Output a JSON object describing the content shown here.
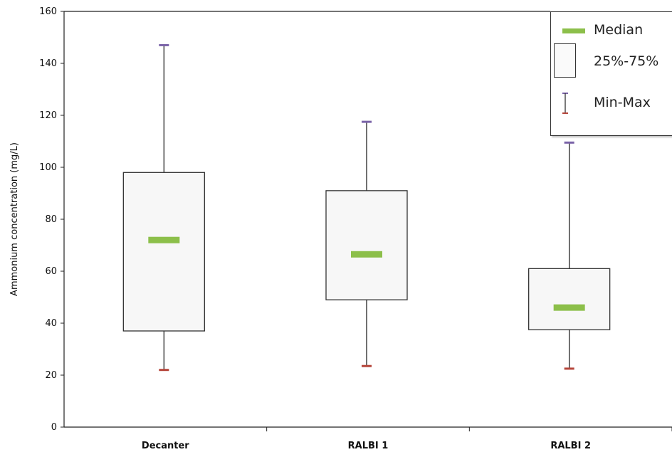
{
  "chart_data": {
    "type": "box",
    "ylabel": "Ammonium concentration (mg/L)",
    "xlabel": "",
    "ylim": [
      0,
      160
    ],
    "yticks": [
      0,
      20,
      40,
      60,
      80,
      100,
      120,
      140,
      160
    ],
    "grid": false,
    "legend_placement": "top-right",
    "categories": [
      "Decanter",
      "RALBI 1",
      "RALBI 2"
    ],
    "boxes": [
      {
        "category": "Decanter",
        "min": 22,
        "q1": 37,
        "median": 72,
        "q3": 98,
        "max": 147
      },
      {
        "category": "RALBI 1",
        "min": 23.5,
        "q1": 49,
        "median": 66.5,
        "q3": 91,
        "max": 117.5
      },
      {
        "category": "RALBI 2",
        "min": 22.5,
        "q1": 37.5,
        "median": 46,
        "q3": 61,
        "max": 109.5
      }
    ],
    "legend": [
      {
        "key": "median",
        "label": "Median"
      },
      {
        "key": "box",
        "label": "25%-75%"
      },
      {
        "key": "range",
        "label": "Min-Max"
      }
    ],
    "colors": {
      "median": "#8cbf4a",
      "box_fill": "#f7f7f7",
      "box_stroke": "#333333",
      "max_cap": "#7a63a8",
      "min_cap": "#b5453a",
      "axis": "#222222"
    }
  }
}
